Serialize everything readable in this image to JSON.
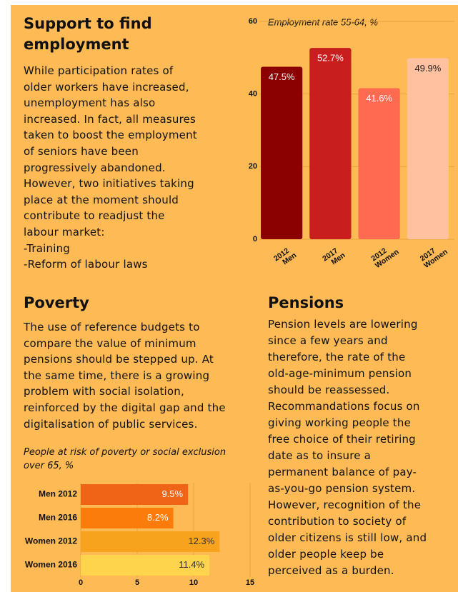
{
  "sections": [
    {
      "title": [
        "Support to find",
        "employment"
      ],
      "lines": [
        "While participation rates of",
        "older workers have increased,",
        "unemployment has also",
        "increased. In fact, all measures",
        "taken to boost the employment",
        "of seniors have been",
        "progressively abandoned.",
        "However, two initiatives taking",
        "place at the moment should",
        "contribute to readjust the",
        "labour market:",
        "-Training",
        "-Reform of labour laws"
      ]
    },
    {
      "title": [
        "Poverty"
      ],
      "lines": [
        "The use of reference budgets to",
        "compare the value of minimum",
        "pensions should be stepped up. At",
        "the same time, there is a growing",
        "problem with social isolation,",
        "reinforced by the digital gap and the",
        "digitalisation of public services."
      ]
    },
    {
      "title": [
        "Pensions"
      ],
      "lines": [
        "Pension levels are lowering",
        "since a few years and",
        "therefore, the rate of the",
        "old-age-minimum pension",
        "should be reassessed.",
        "Recommandations focus on",
        "giving working people the",
        "free choice of their retiring",
        "date as to insure a",
        "permanent balance of pay-",
        "as-you-go pension system.",
        "However, recognition of the",
        "contribution to society of",
        "older citizens is still low, and",
        "older people keep be",
        "perceived as a burden."
      ]
    }
  ],
  "chart_data": [
    {
      "type": "bar",
      "title": "Employment rate 55-64, %",
      "categories": [
        [
          "2012",
          "Men"
        ],
        [
          "2017",
          "Men"
        ],
        [
          "2012",
          "Women"
        ],
        [
          "2017",
          "Women"
        ]
      ],
      "values": [
        47.5,
        52.7,
        41.6,
        49.9
      ],
      "value_labels": [
        "47.5%",
        "52.7%",
        "41.6%",
        "49.9%"
      ],
      "colors": [
        "#8b0000",
        "#c81e1e",
        "#ff6a50",
        "#ffc1a0"
      ],
      "ylim": [
        0,
        60
      ],
      "yticks": [
        0,
        20,
        40,
        60
      ],
      "grid": true
    },
    {
      "type": "hbar",
      "title": "People at risk of poverty or social exclusion over 65, %",
      "categories": [
        "Men 2012",
        "Men 2016",
        "Women 2012",
        "Women 2016"
      ],
      "values": [
        9.5,
        8.2,
        12.3,
        11.4
      ],
      "value_labels": [
        "9.5%",
        "8.2%",
        "12.3%",
        "11.4%"
      ],
      "colors": [
        "#f06418",
        "#fb7c0a",
        "#f8a31e",
        "#fdd44c"
      ],
      "xlim": [
        0,
        15
      ],
      "xticks": [
        0,
        5,
        10,
        15
      ],
      "grid": true
    }
  ]
}
